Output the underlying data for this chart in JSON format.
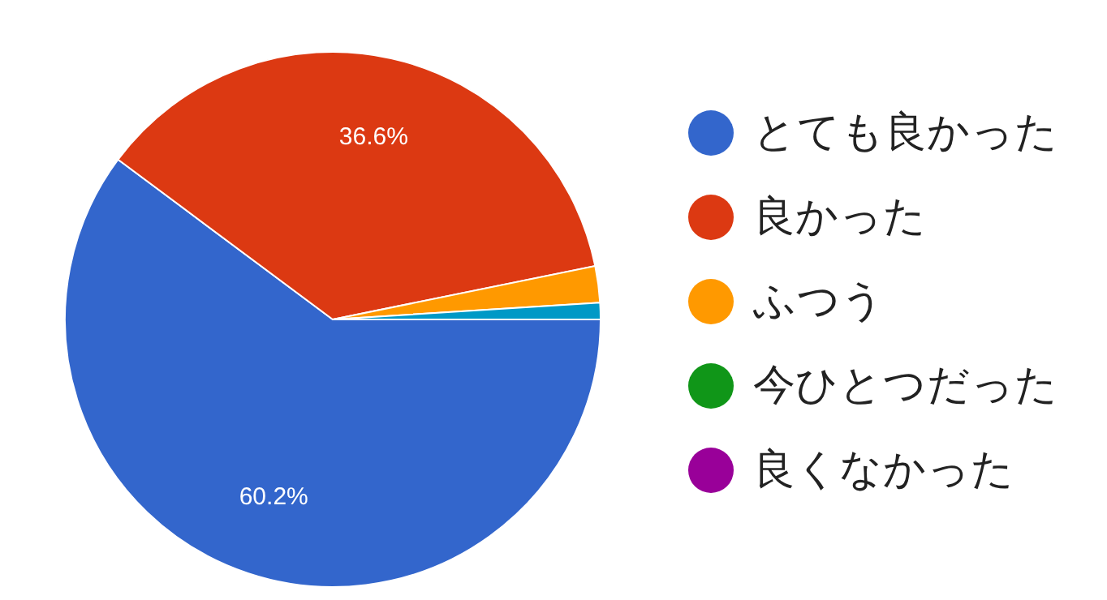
{
  "chart_data": {
    "type": "pie",
    "categories": [
      "とても良かった",
      "良かった",
      "ふつう",
      "今ひとつだった",
      "良くなかった",
      null
    ],
    "values": [
      60.2,
      36.6,
      2.2,
      0,
      0,
      1.0
    ],
    "colors": [
      "#3366cc",
      "#dc3912",
      "#ff9900",
      "#109618",
      "#990099",
      "#0099c6"
    ],
    "value_labels": [
      "60.2%",
      "36.6%",
      null,
      null,
      null,
      null
    ],
    "legend": "right"
  }
}
